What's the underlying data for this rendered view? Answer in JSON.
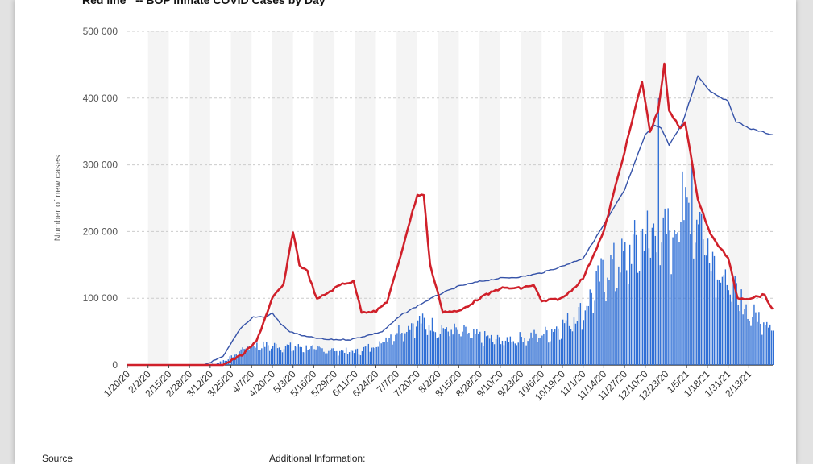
{
  "header": {
    "legend_text": "Red line   -- BOP Inmate COVID Cases by Day"
  },
  "footer": {
    "source_label": "Source",
    "additional_label": "Additional Information:"
  },
  "colors": {
    "bars": "#2f6fd6",
    "national_line": "#3552a8",
    "bop_line": "#d0202a",
    "grid": "#cccccc",
    "band": "#f4f4f4"
  },
  "chart_data": {
    "type": "bar",
    "ylabel": "Number of new cases",
    "ylim": [
      0,
      500000
    ],
    "yticks": [
      0,
      100000,
      200000,
      300000,
      400000,
      500000
    ],
    "ytick_labels": [
      "0",
      "100 000",
      "200 000",
      "300 000",
      "400 000",
      "500 000"
    ],
    "x_start": "2020-01-20",
    "x_end": "2021-02-28",
    "xtick_labels": [
      "1/20/20",
      "2/2/20",
      "2/15/20",
      "2/28/20",
      "3/12/20",
      "3/25/20",
      "4/7/20",
      "4/20/20",
      "5/3/20",
      "5/16/20",
      "5/29/20",
      "6/11/20",
      "6/24/20",
      "7/7/20",
      "7/20/20",
      "8/2/20",
      "8/15/20",
      "8/28/20",
      "9/10/20",
      "9/23/20",
      "10/6/20",
      "10/19/20",
      "11/1/20",
      "11/14/20",
      "11/27/20",
      "12/10/20",
      "12/23/20",
      "1/5/21",
      "1/18/21",
      "1/31/21",
      "2/13/21"
    ],
    "bar_keyframes": [
      {
        "date": "2020-01-20",
        "value": 0
      },
      {
        "date": "2020-03-01",
        "value": 0
      },
      {
        "date": "2020-03-15",
        "value": 2000
      },
      {
        "date": "2020-03-25",
        "value": 12000
      },
      {
        "date": "2020-04-04",
        "value": 30000
      },
      {
        "date": "2020-04-20",
        "value": 30000
      },
      {
        "date": "2020-05-10",
        "value": 27000
      },
      {
        "date": "2020-06-01",
        "value": 22000
      },
      {
        "date": "2020-06-12",
        "value": 21000
      },
      {
        "date": "2020-06-24",
        "value": 32000
      },
      {
        "date": "2020-07-07",
        "value": 52000
      },
      {
        "date": "2020-07-20",
        "value": 68000
      },
      {
        "date": "2020-08-02",
        "value": 58000
      },
      {
        "date": "2020-08-15",
        "value": 52000
      },
      {
        "date": "2020-08-28",
        "value": 44000
      },
      {
        "date": "2020-09-10",
        "value": 38000
      },
      {
        "date": "2020-09-23",
        "value": 42000
      },
      {
        "date": "2020-10-06",
        "value": 47000
      },
      {
        "date": "2020-10-19",
        "value": 62000
      },
      {
        "date": "2020-11-01",
        "value": 85000
      },
      {
        "date": "2020-11-14",
        "value": 145000
      },
      {
        "date": "2020-11-27",
        "value": 165000
      },
      {
        "date": "2020-12-10",
        "value": 205000
      },
      {
        "date": "2020-12-23",
        "value": 200000
      },
      {
        "date": "2021-01-05",
        "value": 240000
      },
      {
        "date": "2021-01-12",
        "value": 235000
      },
      {
        "date": "2021-01-20",
        "value": 175000
      },
      {
        "date": "2021-01-31",
        "value": 125000
      },
      {
        "date": "2021-02-13",
        "value": 80000
      },
      {
        "date": "2021-02-28",
        "value": 65000
      }
    ],
    "bar_spikes": [
      {
        "date": "2020-12-18",
        "value": 400000
      },
      {
        "date": "2021-01-08",
        "value": 310000
      },
      {
        "date": "2021-01-02",
        "value": 290000
      },
      {
        "date": "2020-12-24",
        "value": 235000
      }
    ],
    "series": [
      {
        "points": [
          {
            "date": "2020-01-20",
            "value": 0
          },
          {
            "date": "2020-03-08",
            "value": 0
          },
          {
            "date": "2020-03-20",
            "value": 12000
          },
          {
            "date": "2020-03-31",
            "value": 55000
          },
          {
            "date": "2020-04-08",
            "value": 72000
          },
          {
            "date": "2020-04-16",
            "value": 72000
          },
          {
            "date": "2020-04-20",
            "value": 78000
          },
          {
            "date": "2020-04-25",
            "value": 62000
          },
          {
            "date": "2020-05-01",
            "value": 50000
          },
          {
            "date": "2020-05-10",
            "value": 43000
          },
          {
            "date": "2020-05-24",
            "value": 38000
          },
          {
            "date": "2020-06-08",
            "value": 38000
          },
          {
            "date": "2020-06-20",
            "value": 45000
          },
          {
            "date": "2020-06-28",
            "value": 50000
          },
          {
            "date": "2020-07-10",
            "value": 75000
          },
          {
            "date": "2020-07-25",
            "value": 95000
          },
          {
            "date": "2020-08-02",
            "value": 105000
          },
          {
            "date": "2020-08-15",
            "value": 118000
          },
          {
            "date": "2020-08-28",
            "value": 125000
          },
          {
            "date": "2020-09-10",
            "value": 130000
          },
          {
            "date": "2020-09-23",
            "value": 132000
          },
          {
            "date": "2020-10-06",
            "value": 138000
          },
          {
            "date": "2020-10-19",
            "value": 148000
          },
          {
            "date": "2020-11-01",
            "value": 160000
          },
          {
            "date": "2020-11-14",
            "value": 210000
          },
          {
            "date": "2020-11-27",
            "value": 262000
          },
          {
            "date": "2020-12-10",
            "value": 345000
          },
          {
            "date": "2020-12-16",
            "value": 360000
          },
          {
            "date": "2020-12-20",
            "value": 355000
          },
          {
            "date": "2020-12-25",
            "value": 330000
          },
          {
            "date": "2021-01-02",
            "value": 360000
          },
          {
            "date": "2021-01-12",
            "value": 433000
          },
          {
            "date": "2021-01-20",
            "value": 410000
          },
          {
            "date": "2021-01-31",
            "value": 395000
          },
          {
            "date": "2021-02-05",
            "value": 365000
          },
          {
            "date": "2021-02-13",
            "value": 355000
          },
          {
            "date": "2021-02-28",
            "value": 345000
          }
        ]
      },
      {
        "points": [
          {
            "date": "2020-01-20",
            "value": 0
          },
          {
            "date": "2020-03-20",
            "value": 0
          },
          {
            "date": "2020-04-01",
            "value": 15000
          },
          {
            "date": "2020-04-10",
            "value": 35000
          },
          {
            "date": "2020-04-20",
            "value": 100000
          },
          {
            "date": "2020-04-27",
            "value": 120000
          },
          {
            "date": "2020-05-03",
            "value": 200000
          },
          {
            "date": "2020-05-07",
            "value": 150000
          },
          {
            "date": "2020-05-12",
            "value": 140000
          },
          {
            "date": "2020-05-18",
            "value": 98000
          },
          {
            "date": "2020-05-26",
            "value": 110000
          },
          {
            "date": "2020-06-03",
            "value": 122000
          },
          {
            "date": "2020-06-10",
            "value": 125000
          },
          {
            "date": "2020-06-15",
            "value": 80000
          },
          {
            "date": "2020-06-24",
            "value": 80000
          },
          {
            "date": "2020-07-01",
            "value": 95000
          },
          {
            "date": "2020-07-08",
            "value": 150000
          },
          {
            "date": "2020-07-14",
            "value": 205000
          },
          {
            "date": "2020-07-20",
            "value": 255000
          },
          {
            "date": "2020-07-24",
            "value": 255000
          },
          {
            "date": "2020-07-28",
            "value": 150000
          },
          {
            "date": "2020-08-05",
            "value": 80000
          },
          {
            "date": "2020-08-15",
            "value": 80000
          },
          {
            "date": "2020-08-28",
            "value": 100000
          },
          {
            "date": "2020-09-10",
            "value": 115000
          },
          {
            "date": "2020-09-23",
            "value": 115000
          },
          {
            "date": "2020-10-01",
            "value": 120000
          },
          {
            "date": "2020-10-06",
            "value": 95000
          },
          {
            "date": "2020-10-19",
            "value": 100000
          },
          {
            "date": "2020-10-26",
            "value": 115000
          },
          {
            "date": "2020-11-01",
            "value": 130000
          },
          {
            "date": "2020-11-14",
            "value": 200000
          },
          {
            "date": "2020-11-27",
            "value": 320000
          },
          {
            "date": "2020-12-08",
            "value": 425000
          },
          {
            "date": "2020-12-13",
            "value": 350000
          },
          {
            "date": "2020-12-18",
            "value": 380000
          },
          {
            "date": "2020-12-22",
            "value": 450000
          },
          {
            "date": "2020-12-25",
            "value": 380000
          },
          {
            "date": "2021-01-01",
            "value": 355000
          },
          {
            "date": "2021-01-04",
            "value": 365000
          },
          {
            "date": "2021-01-12",
            "value": 250000
          },
          {
            "date": "2021-01-20",
            "value": 195000
          },
          {
            "date": "2021-01-31",
            "value": 160000
          },
          {
            "date": "2021-02-06",
            "value": 100000
          },
          {
            "date": "2021-02-13",
            "value": 100000
          },
          {
            "date": "2021-02-23",
            "value": 105000
          },
          {
            "date": "2021-02-28",
            "value": 82000
          }
        ]
      }
    ],
    "grid": true
  }
}
